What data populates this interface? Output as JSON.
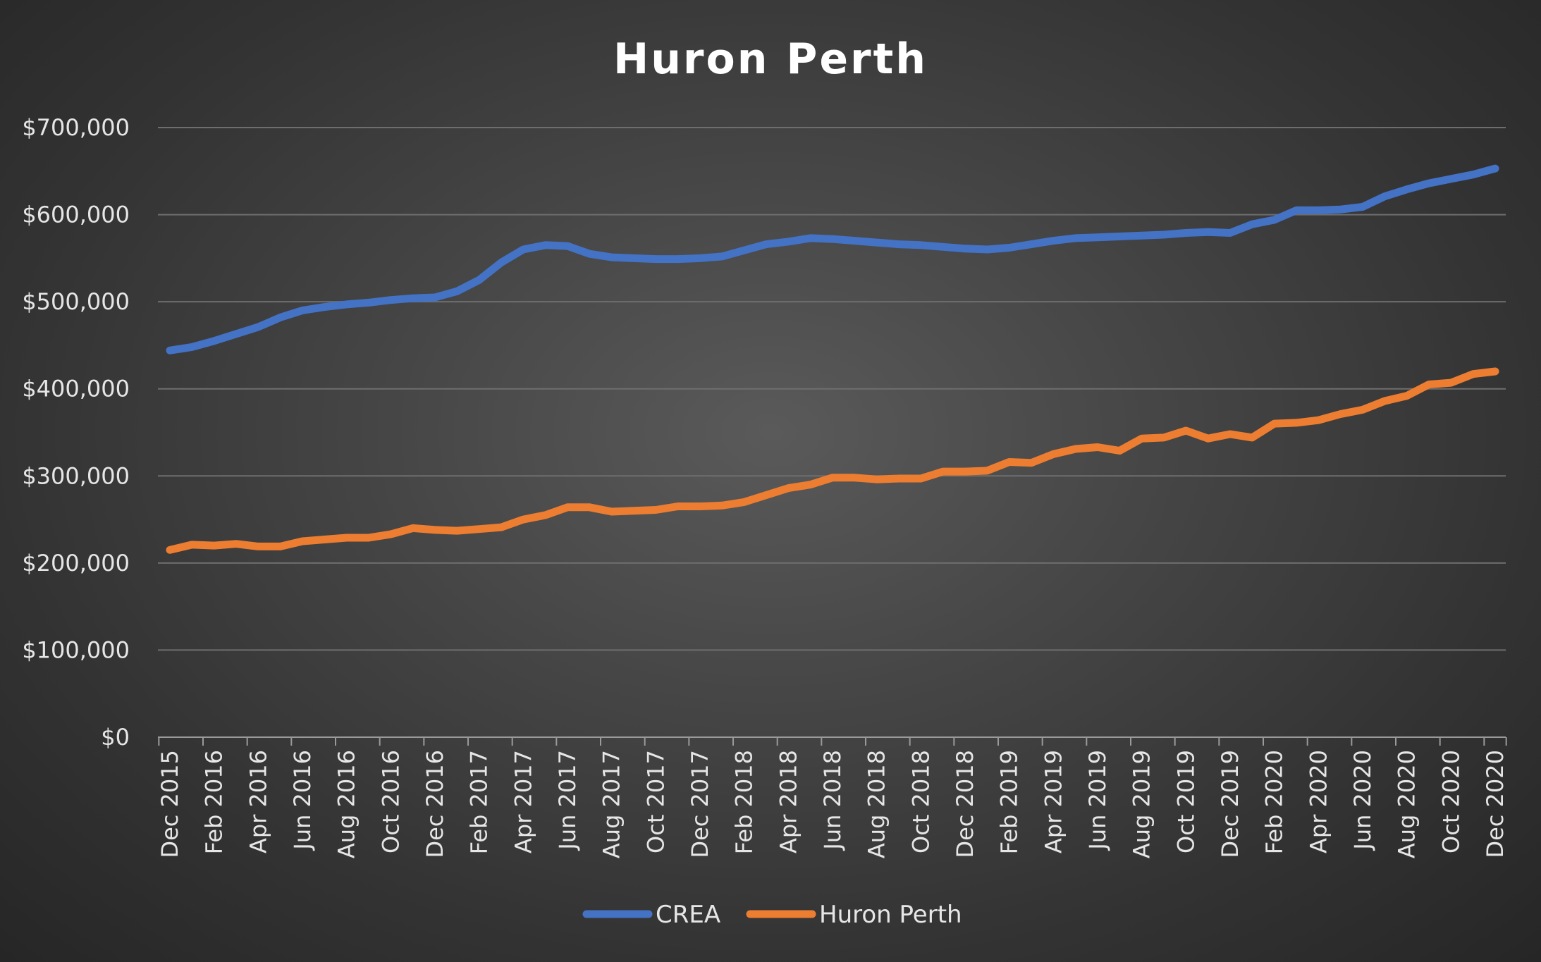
{
  "chart_data": {
    "type": "line",
    "title": "Huron Perth",
    "xlabel": "",
    "ylabel": "",
    "ylim": [
      0,
      700000
    ],
    "yticks": [
      0,
      100000,
      200000,
      300000,
      400000,
      500000,
      600000,
      700000
    ],
    "ytick_labels": [
      "$0",
      "$100,000",
      "$200,000",
      "$300,000",
      "$400,000",
      "$500,000",
      "$600,000",
      "$700,000"
    ],
    "x": [
      "Dec 2015",
      "Jan 2016",
      "Feb 2016",
      "Mar 2016",
      "Apr 2016",
      "May 2016",
      "Jun 2016",
      "Jul 2016",
      "Aug 2016",
      "Sep 2016",
      "Oct 2016",
      "Nov 2016",
      "Dec 2016",
      "Jan 2017",
      "Feb 2017",
      "Mar 2017",
      "Apr 2017",
      "May 2017",
      "Jun 2017",
      "Jul 2017",
      "Aug 2017",
      "Sep 2017",
      "Oct 2017",
      "Nov 2017",
      "Dec 2017",
      "Jan 2018",
      "Feb 2018",
      "Mar 2018",
      "Apr 2018",
      "May 2018",
      "Jun 2018",
      "Jul 2018",
      "Aug 2018",
      "Sep 2018",
      "Oct 2018",
      "Nov 2018",
      "Dec 2018",
      "Jan 2019",
      "Feb 2019",
      "Mar 2019",
      "Apr 2019",
      "May 2019",
      "Jun 2019",
      "Jul 2019",
      "Aug 2019",
      "Sep 2019",
      "Oct 2019",
      "Nov 2019",
      "Dec 2019",
      "Jan 2020",
      "Feb 2020",
      "Mar 2020",
      "Apr 2020",
      "May 2020",
      "Jun 2020",
      "Jul 2020",
      "Aug 2020",
      "Sep 2020",
      "Oct 2020",
      "Nov 2020",
      "Dec 2020"
    ],
    "xtick_labels": [
      "Dec 2015",
      "",
      "Feb 2016",
      "",
      "Apr 2016",
      "",
      "Jun 2016",
      "",
      "Aug 2016",
      "",
      "Oct 2016",
      "",
      "Dec 2016",
      "",
      "Feb 2017",
      "",
      "Apr 2017",
      "",
      "Jun 2017",
      "",
      "Aug 2017",
      "",
      "Oct 2017",
      "",
      "Dec 2017",
      "",
      "Feb 2018",
      "",
      "Apr 2018",
      "",
      "Jun 2018",
      "",
      "Aug 2018",
      "",
      "Oct 2018",
      "",
      "Dec 2018",
      "",
      "Feb 2019",
      "",
      "Apr 2019",
      "",
      "Jun 2019",
      "",
      "Aug 2019",
      "",
      "Oct 2019",
      "",
      "Dec 2019",
      "",
      "Feb 2020",
      "",
      "Apr 2020",
      "",
      "Jun 2020",
      "",
      "Aug 2020",
      "",
      "Oct 2020",
      "",
      "Dec 2020"
    ],
    "series": [
      {
        "name": "CREA",
        "color": "#4472c4",
        "values": [
          444000,
          448000,
          455000,
          463000,
          471000,
          482000,
          490000,
          494000,
          497000,
          499000,
          502000,
          504000,
          505000,
          512000,
          525000,
          545000,
          560000,
          565000,
          564000,
          555000,
          551000,
          550000,
          549000,
          549000,
          550000,
          552000,
          559000,
          566000,
          569000,
          573000,
          572000,
          570000,
          568000,
          566000,
          565000,
          563000,
          561000,
          560000,
          562000,
          566000,
          570000,
          573000,
          574000,
          575000,
          576000,
          577000,
          579000,
          580000,
          579000,
          589000,
          594000,
          605000,
          605000,
          606000,
          609000,
          621000,
          629000,
          636000,
          641000,
          646000,
          653000
        ]
      },
      {
        "name": "Huron Perth",
        "color": "#ed7d31",
        "values": [
          215000,
          221000,
          220000,
          222000,
          219000,
          219000,
          225000,
          227000,
          229000,
          229000,
          233000,
          240000,
          238000,
          237000,
          239000,
          241000,
          250000,
          255000,
          264000,
          264000,
          259000,
          260000,
          261000,
          265000,
          265000,
          266000,
          270000,
          278000,
          286000,
          290000,
          298000,
          298000,
          296000,
          297000,
          297000,
          305000,
          305000,
          306000,
          316000,
          315000,
          325000,
          331000,
          333000,
          329000,
          343000,
          344000,
          352000,
          343000,
          348000,
          344000,
          360000,
          361000,
          364000,
          371000,
          376000,
          386000,
          392000,
          405000,
          407000,
          417000,
          420000
        ]
      }
    ],
    "grid": true,
    "legend_position": "bottom-center"
  }
}
